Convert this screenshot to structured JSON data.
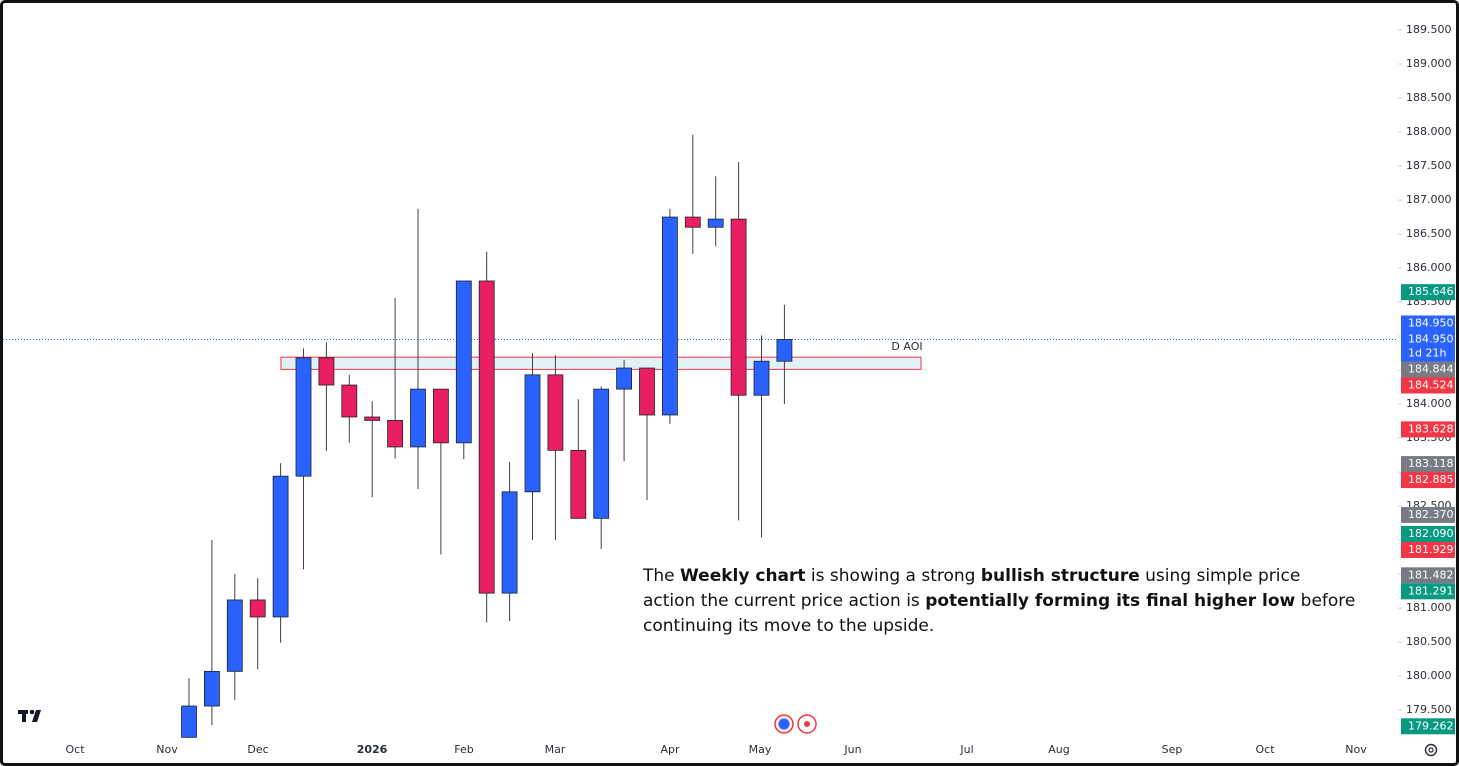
{
  "chart_data": {
    "type": "candlestick",
    "open": [
      179.1,
      179.56,
      180.07,
      181.12,
      180.87,
      182.94,
      184.68,
      184.28,
      183.81,
      183.76,
      183.37,
      184.22,
      183.43,
      185.81,
      181.22,
      182.71,
      184.43,
      183.32,
      182.32,
      184.22,
      184.53,
      183.84,
      186.75,
      186.6,
      186.72,
      184.13,
      184.63
    ],
    "high": [
      179.97,
      182.0,
      181.5,
      181.44,
      183.13,
      184.82,
      184.91,
      184.43,
      184.04,
      185.56,
      186.87,
      184.22,
      185.81,
      186.24,
      183.15,
      184.75,
      184.72,
      184.07,
      184.26,
      184.65,
      184.53,
      186.87,
      187.96,
      187.35,
      187.56,
      185.01,
      185.46
    ],
    "low": [
      178.9,
      179.28,
      179.65,
      180.1,
      180.49,
      181.57,
      183.31,
      183.43,
      182.63,
      183.2,
      182.75,
      181.79,
      183.19,
      180.79,
      180.81,
      182.0,
      182.0,
      182.32,
      181.87,
      183.16,
      182.59,
      183.71,
      186.21,
      186.32,
      182.29,
      182.04,
      184.0
    ],
    "close": [
      179.56,
      180.07,
      181.12,
      180.87,
      182.94,
      184.68,
      184.28,
      183.81,
      183.76,
      183.37,
      184.22,
      183.43,
      185.81,
      181.22,
      182.71,
      184.43,
      183.32,
      182.32,
      184.22,
      184.53,
      183.84,
      186.75,
      186.6,
      186.72,
      184.13,
      184.63,
      184.95
    ],
    "up_color": "#2962ff",
    "down_color": "#e91e63",
    "x_labels": [
      "Oct",
      "Nov",
      "Dec",
      "2026",
      "Feb",
      "Mar",
      "Apr",
      "May",
      "Jun",
      "Jul",
      "Aug",
      "Sep",
      "Oct",
      "Nov"
    ],
    "ylim": [
      179.09,
      189.78
    ],
    "yticks": [
      {
        "value": 179.5,
        "label": "179.500"
      },
      {
        "value": 180,
        "label": "180.000"
      },
      {
        "value": 180.5,
        "label": "180.500"
      },
      {
        "value": 181,
        "label": "181.000"
      },
      {
        "value": 181.5,
        "label": "181.500"
      },
      {
        "value": 182,
        "label": "182.000"
      },
      {
        "value": 182.5,
        "label": "182.500"
      },
      {
        "value": 183,
        "label": "183.000"
      },
      {
        "value": 183.5,
        "label": "183.500"
      },
      {
        "value": 184,
        "label": "184.000"
      },
      {
        "value": 184.5,
        "label": "184.500"
      },
      {
        "value": 185,
        "label": "185.000"
      },
      {
        "value": 185.5,
        "label": "185.500"
      },
      {
        "value": 186,
        "label": "186.000"
      },
      {
        "value": 186.5,
        "label": "186.500"
      },
      {
        "value": 187,
        "label": "187.000"
      },
      {
        "value": 187.5,
        "label": "187.500"
      },
      {
        "value": 188,
        "label": "188.000"
      },
      {
        "value": 188.5,
        "label": "188.500"
      },
      {
        "value": 189,
        "label": "189.000"
      },
      {
        "value": 189.5,
        "label": "189.500"
      }
    ],
    "price_labels": [
      {
        "value": 185.646,
        "label": "185.646",
        "color": "#089981"
      },
      {
        "value": 184.95,
        "label": "184.950",
        "color": "#2962ff"
      },
      {
        "value": 184.95,
        "label": "184.950",
        "color": "#2962ff",
        "countdown": "1d 21h"
      },
      {
        "value": 184.844,
        "label": "184.844",
        "color": "#787b86"
      },
      {
        "value": 184.524,
        "label": "184.524",
        "color": "#f23645"
      },
      {
        "value": 183.628,
        "label": "183.628",
        "color": "#f23645"
      },
      {
        "value": 183.118,
        "label": "183.118",
        "color": "#787b86"
      },
      {
        "value": 182.885,
        "label": "182.885",
        "color": "#f23645"
      },
      {
        "value": 182.37,
        "label": "182.370",
        "color": "#787b86"
      },
      {
        "value": 182.09,
        "label": "182.090",
        "color": "#089981"
      },
      {
        "value": 181.929,
        "label": "181.929",
        "color": "#f23645"
      },
      {
        "value": 181.482,
        "label": "181.482",
        "color": "#787b86"
      },
      {
        "value": 181.291,
        "label": "181.291",
        "color": "#089981"
      },
      {
        "value": 179.262,
        "label": "179.262",
        "color": "#089981"
      }
    ],
    "zone": {
      "label": "D AOI",
      "top": 184.69,
      "bottom": 184.51
    },
    "note": [
      {
        "text": "The ",
        "bold": false
      },
      {
        "text": "Weekly chart",
        "bold": true
      },
      {
        "text": " is showing a strong ",
        "bold": false
      },
      {
        "text": "bullish structure",
        "bold": true
      },
      {
        "text": " using simple price action the current price action is ",
        "bold": false
      },
      {
        "text": "potentially forming its final higher low",
        "bold": true
      },
      {
        "text": " before continuing its move to the upside.",
        "bold": false
      }
    ]
  }
}
